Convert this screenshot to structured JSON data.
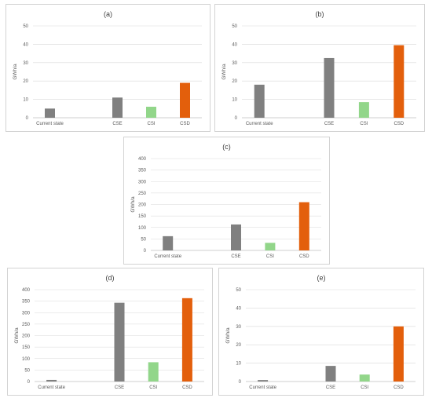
{
  "colors": {
    "gray": "#808080",
    "green": "#92d68a",
    "orange": "#e35f0c"
  },
  "chart_data": [
    {
      "type": "bar",
      "title": "(a)",
      "ylabel": "GWh/a",
      "categories": [
        "Current state",
        "",
        "CSE",
        "CSI",
        "CSD"
      ],
      "values": [
        5,
        null,
        11,
        6,
        19
      ],
      "bar_colors": [
        "gray",
        null,
        "gray",
        "green",
        "orange"
      ],
      "ylim": [
        0,
        50
      ],
      "yticks": [
        0,
        10,
        20,
        30,
        40,
        50
      ],
      "grid": true
    },
    {
      "type": "bar",
      "title": "(b)",
      "ylabel": "GWh/a",
      "categories": [
        "Current state",
        "",
        "CSE",
        "CSI",
        "CSD"
      ],
      "values": [
        18,
        null,
        32.5,
        8.5,
        39.5
      ],
      "bar_colors": [
        "gray",
        null,
        "gray",
        "green",
        "orange"
      ],
      "ylim": [
        0,
        50
      ],
      "yticks": [
        0,
        10,
        20,
        30,
        40,
        50
      ],
      "grid": true
    },
    {
      "type": "bar",
      "title": "(c)",
      "ylabel": "GWh/a",
      "categories": [
        "Current state",
        "",
        "CSE",
        "CSI",
        "CSD"
      ],
      "values": [
        62,
        null,
        113,
        33,
        210
      ],
      "bar_colors": [
        "gray",
        null,
        "gray",
        "green",
        "orange"
      ],
      "ylim": [
        0,
        400
      ],
      "yticks": [
        0,
        50,
        100,
        150,
        200,
        250,
        300,
        350,
        400
      ],
      "grid": true
    },
    {
      "type": "bar",
      "title": "(d)",
      "ylabel": "GWh/a",
      "categories": [
        "Current state",
        "",
        "CSE",
        "CSI",
        "CSD"
      ],
      "values": [
        7,
        null,
        343,
        84,
        363
      ],
      "bar_colors": [
        "gray",
        null,
        "gray",
        "green",
        "orange"
      ],
      "ylim": [
        0,
        400
      ],
      "yticks": [
        0,
        50,
        100,
        150,
        200,
        250,
        300,
        350,
        400
      ],
      "grid": true
    },
    {
      "type": "bar",
      "title": "(e)",
      "ylabel": "GWh/a",
      "categories": [
        "Current state",
        "",
        "CSE",
        "CSI",
        "CSD"
      ],
      "values": [
        0.8,
        null,
        8.5,
        3.8,
        30
      ],
      "bar_colors": [
        "gray",
        null,
        "gray",
        "green",
        "orange"
      ],
      "ylim": [
        0,
        50
      ],
      "yticks": [
        0,
        10,
        20,
        30,
        40,
        50
      ],
      "grid": true
    }
  ]
}
